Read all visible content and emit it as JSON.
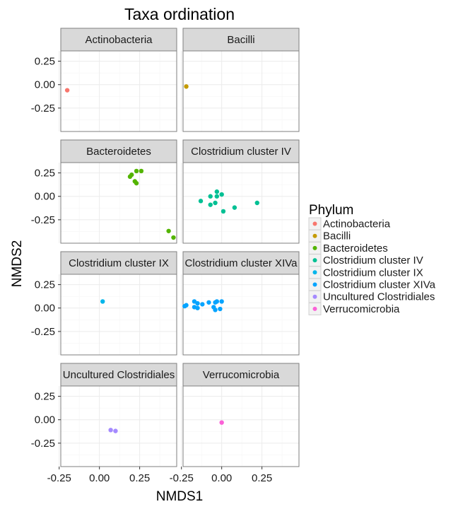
{
  "chart_data": {
    "type": "scatter",
    "title": "Taxa ordination",
    "xlabel": "NMDS1",
    "ylabel": "NMDS2",
    "xlim": [
      -0.24,
      0.48
    ],
    "ylim": [
      -0.5,
      0.36
    ],
    "x_ticks": [
      -0.25,
      0.0,
      0.25
    ],
    "x_tick_labels_left": [
      "-0.25",
      "0.00",
      "0.25"
    ],
    "x_tick_labels_left_col": [
      "-0.25",
      "0.00",
      "0.25"
    ],
    "x_tick_labels": [
      "-0.25",
      "0.00",
      "0.25"
    ],
    "y_ticks": [
      0.25,
      0.0,
      -0.25
    ],
    "y_tick_labels": [
      "0.25",
      "0.00",
      "-0.25"
    ],
    "grid": true,
    "legend": {
      "title": "Phylum",
      "placement": "right"
    },
    "series": [
      {
        "name": "Actinobacteria",
        "color": "#F8766D",
        "points": [
          [
            -0.2,
            -0.06
          ]
        ]
      },
      {
        "name": "Bacilli",
        "color": "#C49A00",
        "points": [
          [
            -0.22,
            -0.02
          ]
        ]
      },
      {
        "name": "Bacteroidetes",
        "color": "#53B400",
        "points": [
          [
            0.26,
            0.27
          ],
          [
            0.23,
            0.27
          ],
          [
            0.2,
            0.23
          ],
          [
            0.19,
            0.21
          ],
          [
            0.22,
            0.16
          ],
          [
            0.23,
            0.14
          ],
          [
            0.43,
            -0.37
          ],
          [
            0.46,
            -0.44
          ]
        ]
      },
      {
        "name": "Clostridium cluster IV",
        "color": "#00C094",
        "points": [
          [
            -0.03,
            0.05
          ],
          [
            -0.07,
            0.0
          ],
          [
            -0.03,
            0.0
          ],
          [
            0.0,
            0.02
          ],
          [
            -0.13,
            -0.05
          ],
          [
            -0.04,
            -0.07
          ],
          [
            -0.07,
            -0.09
          ],
          [
            0.08,
            -0.12
          ],
          [
            0.01,
            -0.16
          ],
          [
            0.22,
            -0.07
          ]
        ]
      },
      {
        "name": "Clostridium cluster IX",
        "color": "#00B6EB",
        "points": [
          [
            0.02,
            0.07
          ]
        ]
      },
      {
        "name": "Clostridium cluster XIVa",
        "color": "#06A4FF",
        "points": [
          [
            -0.22,
            0.03
          ],
          [
            -0.23,
            0.02
          ],
          [
            -0.17,
            0.07
          ],
          [
            -0.15,
            0.05
          ],
          [
            -0.17,
            0.01
          ],
          [
            -0.15,
            0.0
          ],
          [
            -0.12,
            0.04
          ],
          [
            -0.08,
            0.06
          ],
          [
            -0.04,
            0.06
          ],
          [
            -0.05,
            0.01
          ],
          [
            -0.03,
            0.07
          ],
          [
            0.0,
            0.07
          ],
          [
            -0.01,
            -0.01
          ],
          [
            -0.04,
            -0.02
          ]
        ]
      },
      {
        "name": "Uncultured Clostridiales",
        "color": "#A58AFF",
        "points": [
          [
            0.07,
            -0.11
          ],
          [
            0.1,
            -0.12
          ]
        ]
      },
      {
        "name": "Verrucomicrobia",
        "color": "#FB61D7",
        "points": [
          [
            0.0,
            -0.03
          ]
        ]
      }
    ],
    "panels": [
      {
        "strip": "Actinobacteria",
        "series": 0
      },
      {
        "strip": "Bacilli",
        "series": 1
      },
      {
        "strip": "Bacteroidetes",
        "series": 2
      },
      {
        "strip": "Clostridium cluster IV",
        "series": 3
      },
      {
        "strip": "Clostridium cluster IX",
        "series": 4
      },
      {
        "strip": "Clostridium cluster XIVa",
        "series": 5
      },
      {
        "strip": "Uncultured Clostridiales",
        "series": 6
      },
      {
        "strip": "Verrucomicrobia",
        "series": 7
      }
    ]
  }
}
